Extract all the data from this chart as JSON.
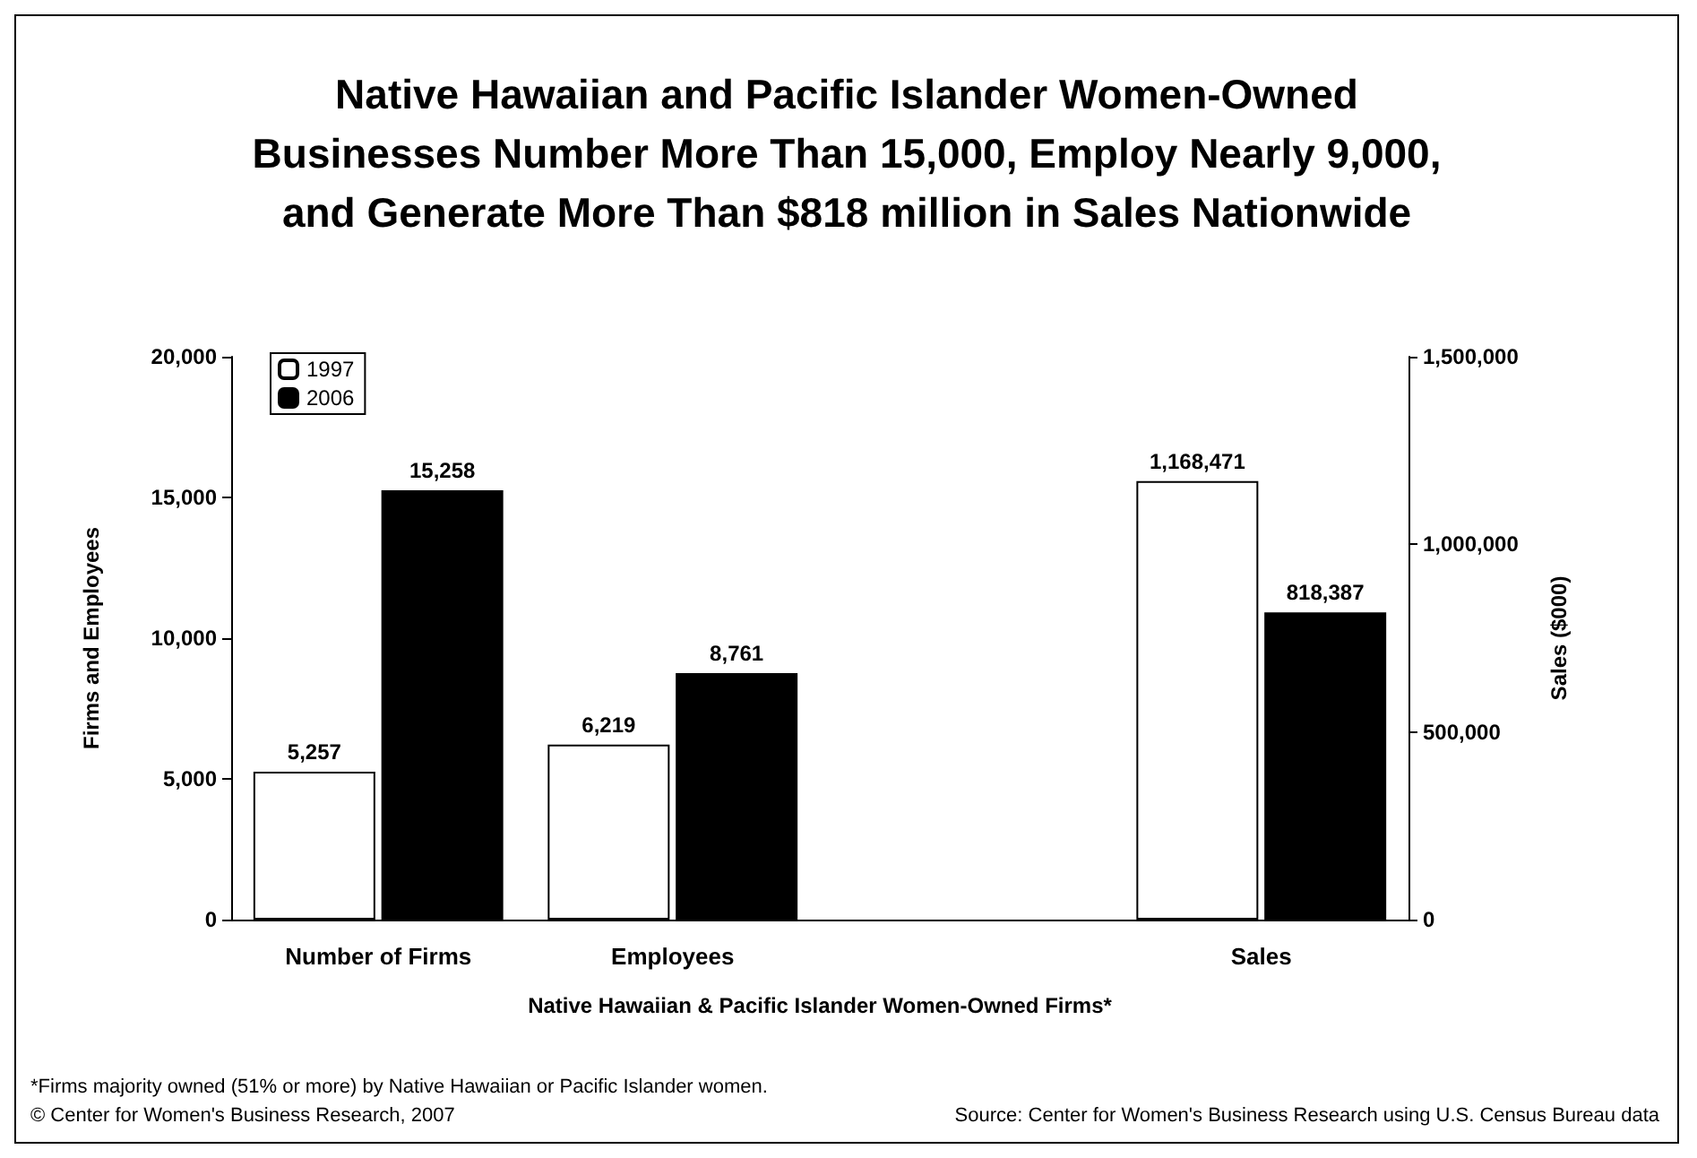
{
  "chart_data": {
    "type": "bar",
    "title": "Native Hawaiian and Pacific Islander Women-Owned\nBusinesses Number More Than 15,000, Employ Nearly 9,000,\nand Generate More Than $818 million in Sales Nationwide",
    "xlabel": "Native Hawaiian & Pacific Islander Women-Owned Firms*",
    "ylabel": "Firms and Employees",
    "y2label": "Sales ($000)",
    "categories": [
      "Number of Firms",
      "Employees",
      null,
      "Sales"
    ],
    "series": [
      {
        "name": "1997",
        "color": "#ffffff",
        "values": [
          5257,
          6219,
          null,
          null
        ],
        "value_labels": [
          "5,257",
          "6,219",
          null,
          null
        ]
      },
      {
        "name": "2006",
        "color": "#000000",
        "values": [
          15258,
          8761,
          null,
          null
        ],
        "value_labels": [
          "15,258",
          "8,761",
          null,
          null
        ]
      },
      {
        "color": "#ffffff",
        "axis": "y2",
        "values": [
          null,
          null,
          null,
          1168471
        ],
        "value_labels": [
          null,
          null,
          null,
          "1,168,471"
        ]
      },
      {
        "color": "#000000",
        "axis": "y2",
        "values": [
          null,
          null,
          null,
          818387
        ],
        "value_labels": [
          null,
          null,
          null,
          "818,387"
        ]
      }
    ],
    "ylim": [
      0,
      20000
    ],
    "yticks": [
      {
        "value": 0,
        "label": "0"
      },
      {
        "value": 5000,
        "label": "5,000"
      },
      {
        "value": 10000,
        "label": "10,000"
      },
      {
        "value": 15000,
        "label": "15,000"
      },
      {
        "value": 20000,
        "label": "20,000"
      }
    ],
    "y2lim": [
      0,
      1500000
    ],
    "y2ticks": [
      {
        "value": 0,
        "label": "0"
      },
      {
        "value": 500000,
        "label": "500,000"
      },
      {
        "value": 1000000,
        "label": "1,000,000"
      },
      {
        "value": 1500000,
        "label": "1,500,000"
      }
    ],
    "grid": false,
    "legend": "top left",
    "annotations": [
      "*Firms majority owned (51% or more) by Native Hawaiian or Pacific Islander women.",
      "© Center for Women's Business Research, 2007",
      "Source: Center for Women's Business Research using U.S. Census Bureau data"
    ]
  }
}
